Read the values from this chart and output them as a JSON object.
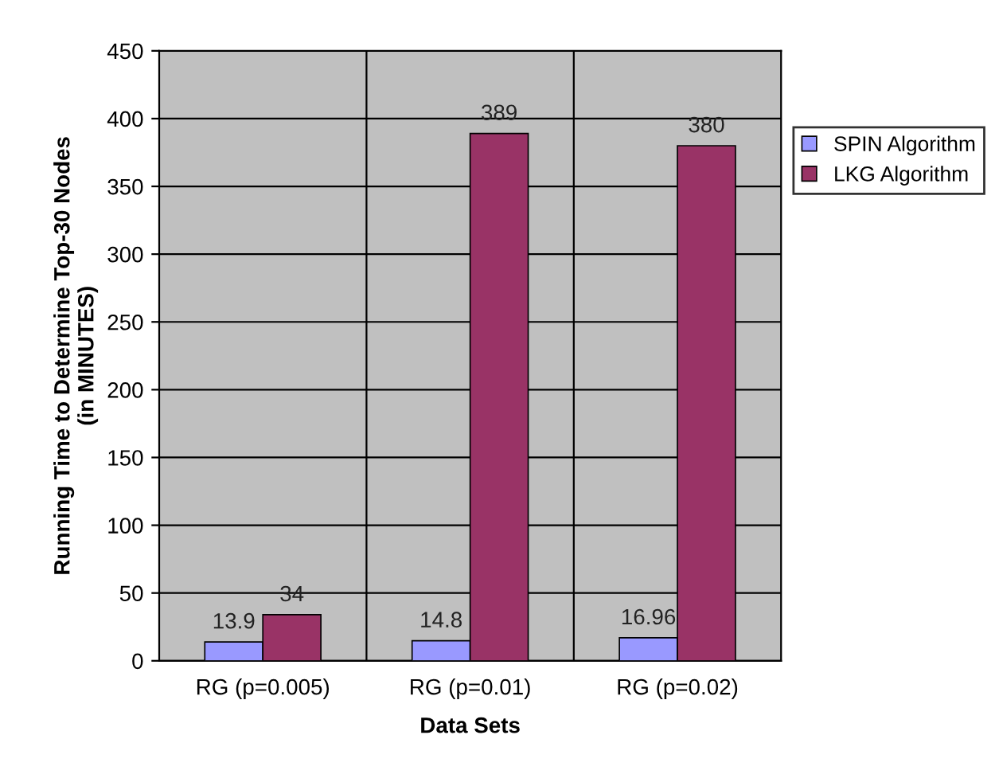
{
  "chart_data": {
    "type": "bar",
    "xlabel": "Data Sets",
    "ylabel": "Running Time to Determine Top-30 Nodes\n(in MINUTES)",
    "categories": [
      "RG (p=0.005)",
      "RG (p=0.01)",
      "RG (p=0.02)"
    ],
    "series": [
      {
        "name": "SPIN Algorithm",
        "color": "#9999ff",
        "values": [
          13.9,
          14.8,
          16.96
        ]
      },
      {
        "name": "LKG Algorithm",
        "color": "#993366",
        "values": [
          34,
          389,
          380
        ]
      }
    ],
    "ylim": [
      0,
      450
    ],
    "yticks": [
      0,
      50,
      100,
      150,
      200,
      250,
      300,
      350,
      400,
      450
    ],
    "grid": true,
    "legend": "right",
    "data_labels": true
  }
}
